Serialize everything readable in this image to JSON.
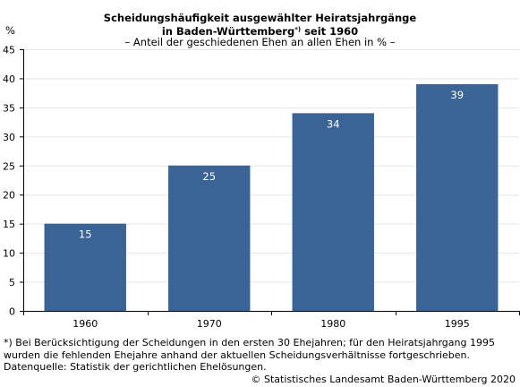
{
  "chart_data": {
    "type": "bar",
    "title_line1": "Scheidungshäufigkeit ausgewählter Heiratsjahrgänge",
    "title_line2_before": "in Baden-Württemberg",
    "title_line2_marker": "*)",
    "title_line2_after": " seit 1960",
    "subtitle": "– Anteil der geschiedenen Ehen an allen Ehen in % –",
    "ylabel": "%",
    "xlabel": "",
    "categories": [
      "1960",
      "1970",
      "1980",
      "1995"
    ],
    "values": [
      15,
      25,
      34,
      39
    ],
    "data_labels": [
      "15",
      "25",
      "34",
      "39"
    ],
    "ylim": [
      0,
      45
    ],
    "yticks": [
      0,
      5,
      10,
      15,
      20,
      25,
      30,
      35,
      40,
      45
    ],
    "grid": true,
    "legend": "none",
    "bar_color": "#3a6496",
    "grid_color": "#e6e6e6",
    "axis_color": "#000000"
  },
  "footnote": {
    "lines": [
      "*) Bei Berücksichtigung der Scheidungen in den ersten 30 Ehejahren; für den Heiratsjahrgang 1995",
      "wurden die fehlenden Ehejahre anhand der aktuellen Scheidungsverhältnisse fortgeschrieben.",
      "Datenquelle: Statistik der gerichtlichen Ehelösungen."
    ]
  },
  "copyright": "© Statistisches Landesamt Baden-Württemberg 2020"
}
